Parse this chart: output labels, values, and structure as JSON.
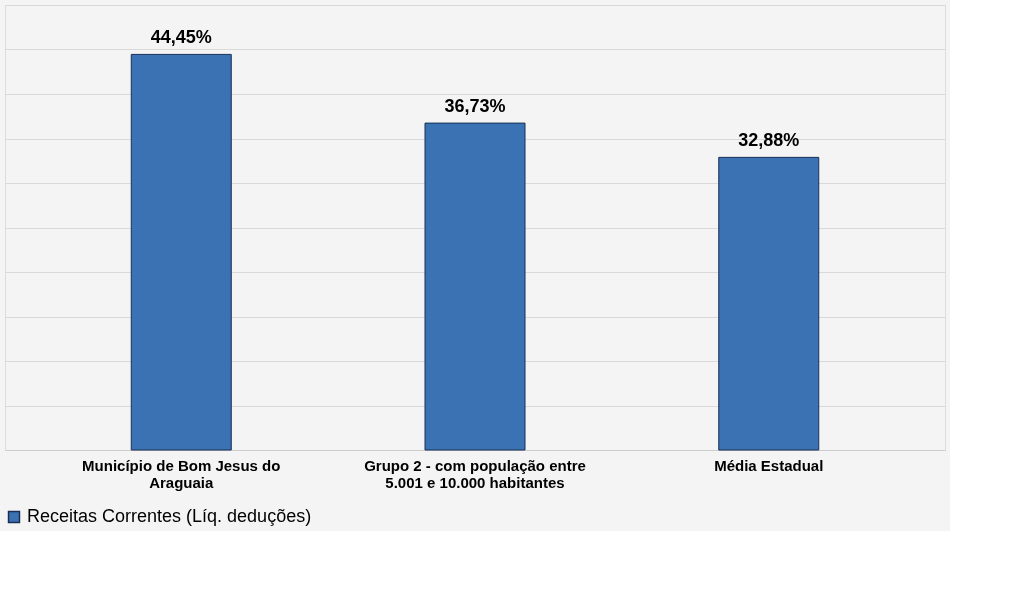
{
  "chart_data": {
    "type": "bar",
    "categories": [
      "Município de Bom Jesus do Araguaia",
      "Grupo 2 - com população entre 5.001 e 10.000 habitantes",
      "Média Estadual"
    ],
    "series": [
      {
        "name": "Receitas Correntes (Líq. deduções)",
        "color": "#3a72b4",
        "values": [
          44.45,
          36.73,
          32.88
        ],
        "value_labels": [
          "44,45%",
          "36,73%",
          "32,88%"
        ]
      }
    ],
    "ylim": [
      0,
      50
    ],
    "yticks": [
      {
        "value": 0,
        "label": null
      },
      {
        "value": 5,
        "label": null
      },
      {
        "value": 10,
        "label": null
      },
      {
        "value": 15,
        "label": null
      },
      {
        "value": 20,
        "label": null
      },
      {
        "value": 25,
        "label": null
      },
      {
        "value": 30,
        "label": null
      },
      {
        "value": 35,
        "label": null
      },
      {
        "value": 40,
        "label": null
      },
      {
        "value": 45,
        "label": null
      },
      {
        "value": 50,
        "label": null
      }
    ],
    "tick_labels": "x",
    "grid": "y",
    "legend": "bottom"
  }
}
